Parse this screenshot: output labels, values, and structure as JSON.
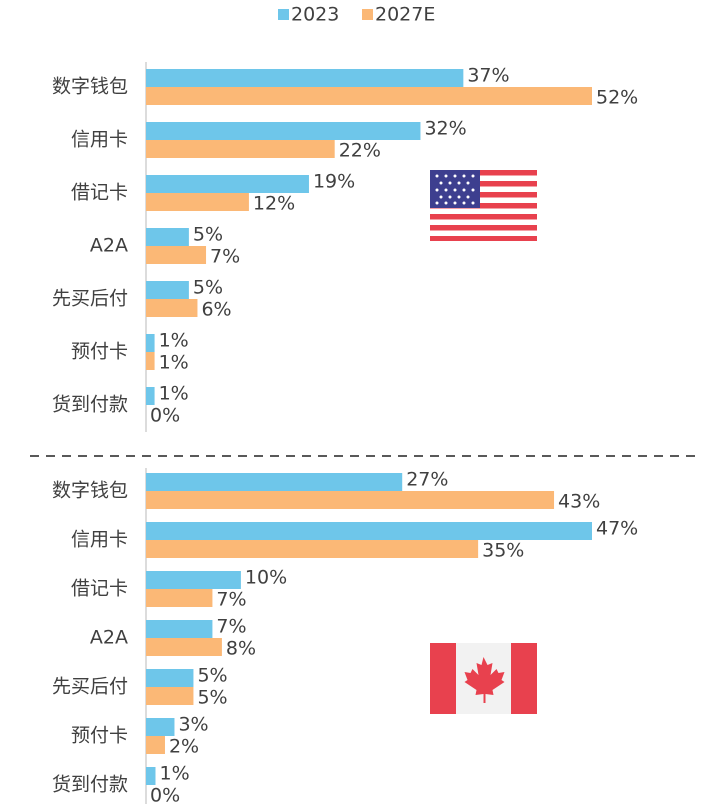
{
  "legend": [
    {
      "name": "2023",
      "color": "#6ec6ea"
    },
    {
      "name": "2027E",
      "color": "#fbb876"
    }
  ],
  "chart_data": [
    {
      "type": "bar",
      "orientation": "horizontal",
      "categories": [
        "数字钱包",
        "信用卡",
        "借记卡",
        "A2A",
        "先买后付",
        "预付卡",
        "货到付款"
      ],
      "series": [
        {
          "values": [
            37,
            32,
            19,
            5,
            5,
            1,
            1
          ],
          "value_labels": [
            "37%",
            "32%",
            "19%",
            "5%",
            "5%",
            "1%",
            "1%"
          ]
        },
        {
          "values": [
            52,
            22,
            12,
            7,
            6,
            1,
            0
          ],
          "value_labels": [
            "52%",
            "22%",
            "12%",
            "7%",
            "6%",
            "1%",
            "0%"
          ]
        }
      ]
    },
    {
      "type": "bar",
      "orientation": "horizontal",
      "categories": [
        "数字钱包",
        "信用卡",
        "借记卡",
        "A2A",
        "先买后付",
        "预付卡",
        "货到付款"
      ],
      "series": [
        {
          "values": [
            27,
            47,
            10,
            7,
            5,
            3,
            1
          ],
          "value_labels": [
            "27%",
            "47%",
            "10%",
            "7%",
            "5%",
            "3%",
            "1%"
          ]
        },
        {
          "values": [
            43,
            35,
            7,
            8,
            5,
            2,
            0
          ],
          "value_labels": [
            "43%",
            "35%",
            "7%",
            "8%",
            "5%",
            "2%",
            "0%"
          ]
        }
      ]
    }
  ]
}
